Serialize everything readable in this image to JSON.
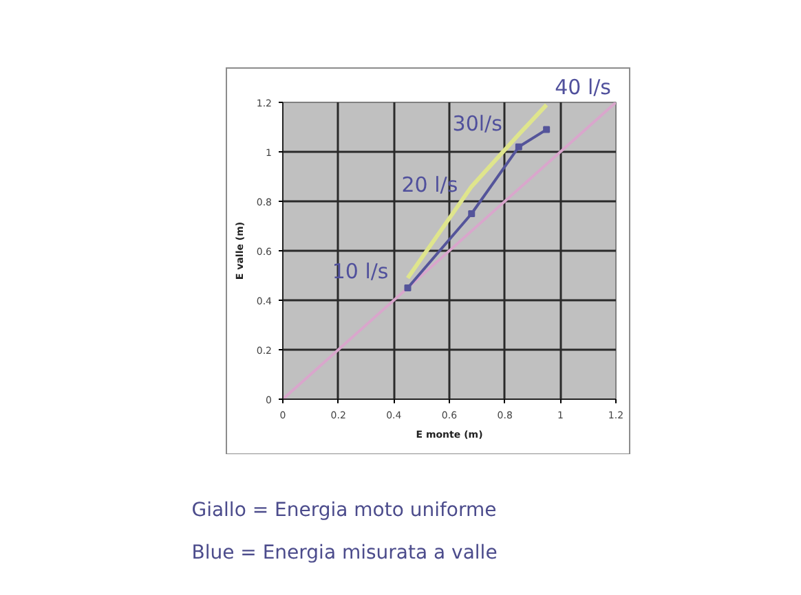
{
  "chart_data": {
    "type": "line",
    "xlabel": "E monte (m)",
    "ylabel": "E valle (m)",
    "xlim": [
      0,
      1.2
    ],
    "ylim": [
      0,
      1.2
    ],
    "xticks": [
      0,
      0.2,
      0.4,
      0.6,
      0.8,
      1,
      1.2
    ],
    "yticks": [
      0,
      0.2,
      0.4,
      0.6,
      0.8,
      1,
      1.2
    ],
    "grid": true,
    "series": [
      {
        "color": "#d9a6cc",
        "x": [
          0,
          1.2
        ],
        "values": [
          0,
          1.2
        ]
      },
      {
        "color": "#dfe58c",
        "x": [
          0.45,
          0.68,
          0.85,
          0.95
        ],
        "values": [
          0.49,
          0.86,
          1.07,
          1.19
        ]
      },
      {
        "color": "#54549a",
        "x": [
          0.45,
          0.68,
          0.85,
          0.95
        ],
        "values": [
          0.45,
          0.75,
          1.02,
          1.09
        ],
        "marker": "square"
      }
    ],
    "annotations": [
      {
        "text": "10 l/s",
        "x": 0.45,
        "y": 0.45
      },
      {
        "text": "20 l/s",
        "x": 0.68,
        "y": 0.75
      },
      {
        "text": "30l/s",
        "x": 0.85,
        "y": 1.02
      },
      {
        "text": "40 l/s",
        "x": 0.95,
        "y": 1.09
      },
      "Giallo = Energia moto uniforme",
      "Blue = Energia misurata a valle"
    ]
  }
}
